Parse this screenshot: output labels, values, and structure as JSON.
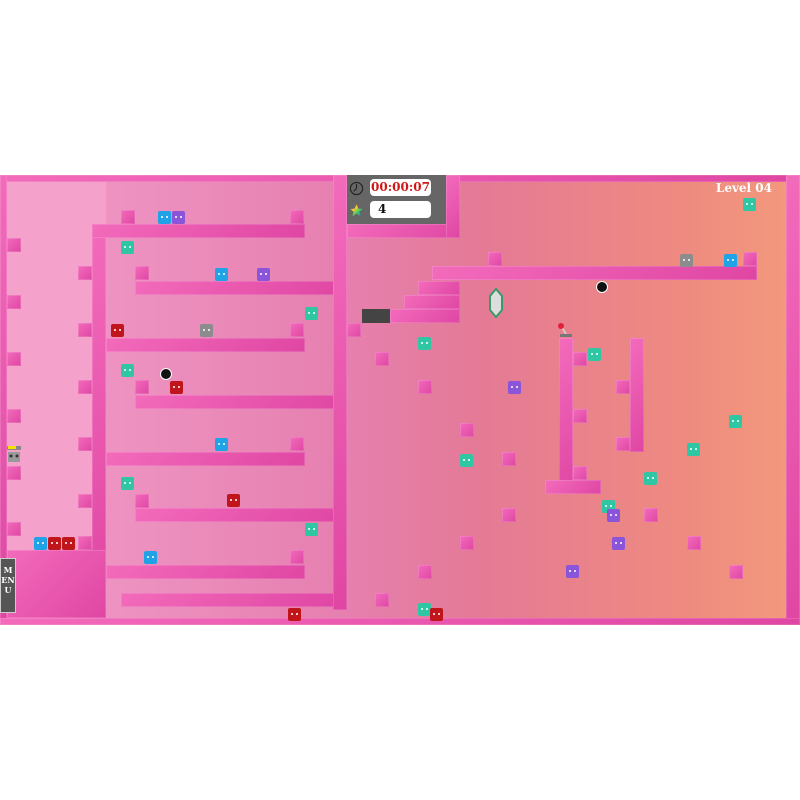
{
  "hud": {
    "timer": "00:00:07",
    "score": "4",
    "clock_icon": "clock-icon",
    "star_icon": "rainbow-star-icon"
  },
  "level_label": "Level 04",
  "menu_label": "MENU",
  "colors": {
    "wall": "#e84fa9",
    "hud_bg": "#666666",
    "timer_text": "#d01818",
    "teal_block": "#2fc6a4",
    "blue_block": "#1fa3e6",
    "purple_block": "#8a55d8",
    "red_block": "#c0151a",
    "grey_block": "#8c8c8c"
  }
}
